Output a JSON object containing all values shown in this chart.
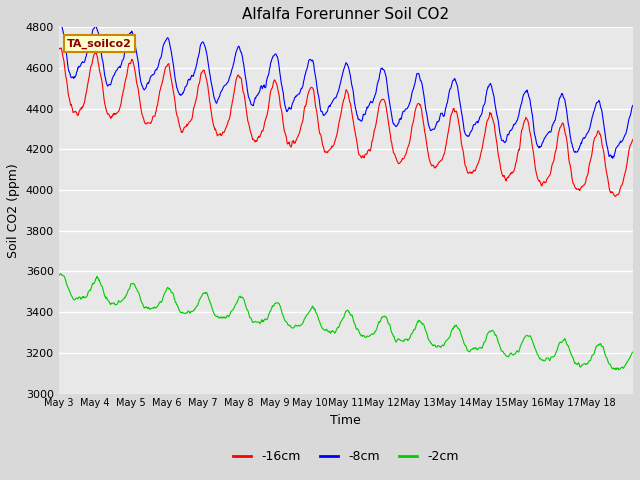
{
  "title": "Alfalfa Forerunner Soil CO2",
  "xlabel": "Time",
  "ylabel": "Soil CO2 (ppm)",
  "ylim": [
    3000,
    4800
  ],
  "bg_color": "#d9d9d9",
  "plot_bg_color": "#e8e8e8",
  "legend_label": "TA_soilco2",
  "series_labels": [
    "-16cm",
    "-8cm",
    "-2cm"
  ],
  "series_colors": [
    "#ff0000",
    "#0000ff",
    "#00cc00"
  ],
  "x_tick_labels": [
    "May 3",
    "May 4",
    "May 5",
    "May 6",
    "May 7",
    "May 8",
    "May 9",
    "May 10",
    "May 11",
    "May 12",
    "May 13",
    "May 14",
    "May 15",
    "May 16",
    "May 17",
    "May 18"
  ],
  "yticks": [
    3000,
    3200,
    3400,
    3600,
    3800,
    4000,
    4200,
    4400,
    4600,
    4800
  ],
  "n_points": 960,
  "n_days": 16
}
